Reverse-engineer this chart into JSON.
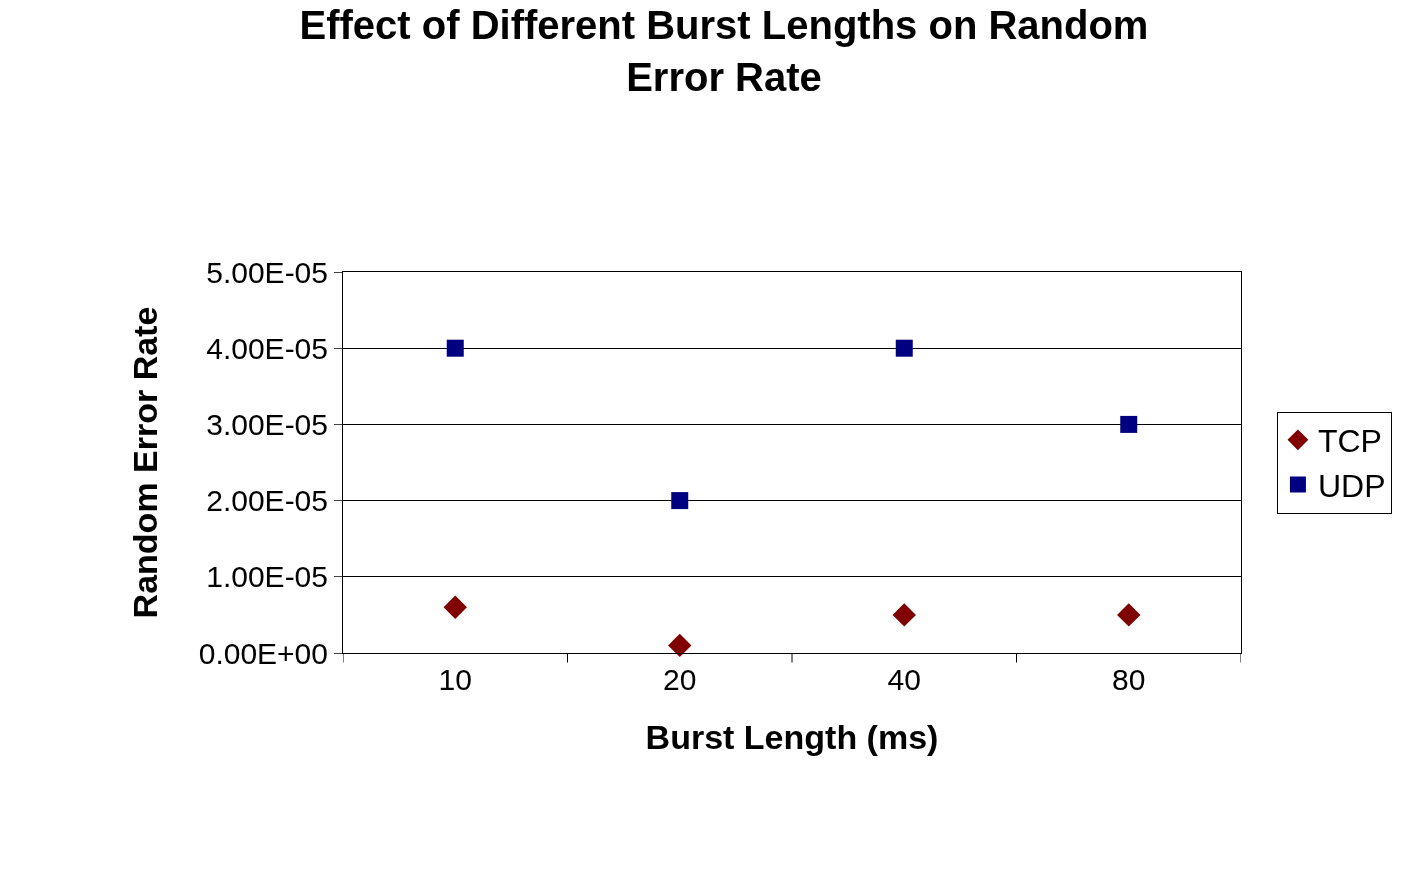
{
  "chart_data": {
    "type": "scatter",
    "title": "Effect of Different Burst Lengths on Random Error Rate",
    "xlabel": "Burst Length (ms)",
    "ylabel": "Random Error Rate",
    "categories": [
      "10",
      "20",
      "40",
      "80"
    ],
    "series": [
      {
        "name": "TCP",
        "color": "#800000",
        "marker": "diamond",
        "values": [
          6e-06,
          1e-06,
          5e-06,
          5e-06
        ]
      },
      {
        "name": "UDP",
        "color": "#000080",
        "marker": "square",
        "values": [
          4e-05,
          2e-05,
          4e-05,
          3e-05
        ]
      }
    ],
    "ylim": [
      0,
      5e-05
    ],
    "yticks": [
      {
        "value": 0,
        "label": "0.00E+00"
      },
      {
        "value": 1e-05,
        "label": "1.00E-05"
      },
      {
        "value": 2e-05,
        "label": "2.00E-05"
      },
      {
        "value": 3e-05,
        "label": "3.00E-05"
      },
      {
        "value": 4e-05,
        "label": "4.00E-05"
      },
      {
        "value": 5e-05,
        "label": "5.00E-05"
      }
    ],
    "grid": "y",
    "legend": "right"
  }
}
